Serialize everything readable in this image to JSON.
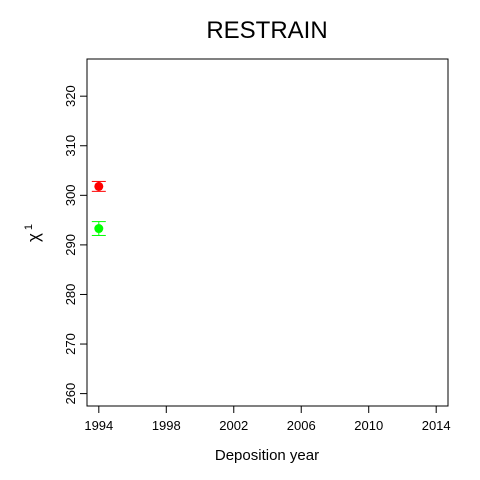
{
  "chart_data": {
    "type": "scatter",
    "title": "RESTRAIN",
    "xlabel": "Deposition year",
    "ylabel": "χ",
    "ylabel_superscript": "1",
    "xlim": [
      1993.3,
      2014.7
    ],
    "ylim": [
      257.5,
      327.5
    ],
    "x_ticks": [
      1994,
      1998,
      2002,
      2006,
      2010,
      2014
    ],
    "y_ticks": [
      260,
      270,
      280,
      290,
      300,
      310,
      320
    ],
    "grid": false,
    "legend": "none",
    "series": [
      {
        "color": "#ff0000",
        "points": [
          {
            "x": 1994,
            "y": 301.8,
            "err_low": 300.8,
            "err_high": 302.8
          }
        ]
      },
      {
        "color": "#00ff00",
        "points": [
          {
            "x": 1994,
            "y": 293.3,
            "err_low": 291.9,
            "err_high": 294.7
          }
        ]
      }
    ]
  }
}
